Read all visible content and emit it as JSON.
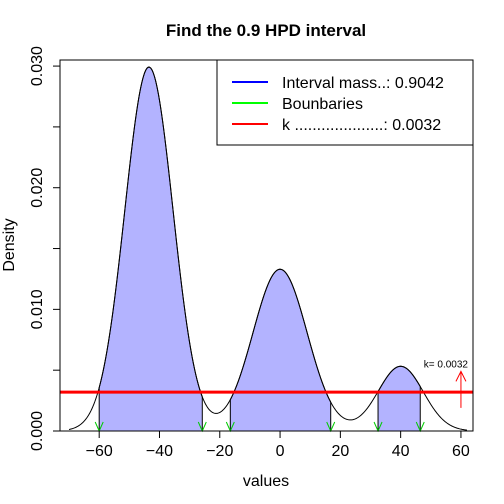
{
  "chart_data": {
    "type": "area",
    "title": "Find the  0.9 HPD interval",
    "xlabel": "values",
    "ylabel": "Density",
    "xlim": [
      -73,
      64
    ],
    "ylim": [
      0,
      0.0305
    ],
    "xticks": [
      -60,
      -40,
      -20,
      0,
      20,
      40,
      60
    ],
    "xtick_labels": [
      "−60",
      "−40",
      "−20",
      "0",
      "20",
      "40",
      "60"
    ],
    "yticks": [
      0.0,
      0.01,
      0.02,
      0.03
    ],
    "ytick_labels": [
      "0.000",
      "0.010",
      "0.020",
      "0.030"
    ],
    "grid": false,
    "legend_position": "top-right",
    "legend": [
      {
        "label": "Interval mass..: 0.9042",
        "color": "#0000ff"
      },
      {
        "label": "Bounbaries",
        "color": "#00ff00"
      },
      {
        "label": "k ....................: 0.0032",
        "color": "#ff0000"
      }
    ],
    "density": {
      "components": [
        {
          "weight": 0.6,
          "mean": -43.5,
          "sd": 8
        },
        {
          "weight": 0.3,
          "mean": 0,
          "sd": 9
        },
        {
          "weight": 0.1,
          "mean": 40,
          "sd": 7.5
        }
      ],
      "x_range": [
        -70,
        62
      ],
      "color": "#000000"
    },
    "hpd_intervals": [
      [
        -60,
        -25.8
      ],
      [
        -16.5,
        16.8
      ],
      [
        32.5,
        46.5
      ]
    ],
    "hpd_fill_color": "#b3b3ff",
    "boundaries": [
      -60,
      -25.8,
      -16.5,
      16.8,
      32.5,
      46.5
    ],
    "boundary_color": "#00cc00",
    "k_value": 0.0032,
    "k_color": "#ff0000",
    "k_arrow_x": 60,
    "k_annotation": "k= 0.0032"
  }
}
